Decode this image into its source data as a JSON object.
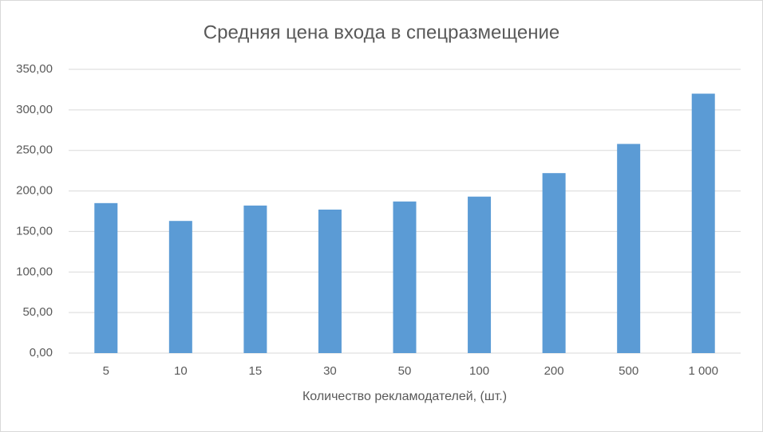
{
  "chart_data": {
    "type": "bar",
    "title": "Средняя цена входа в спецразмещение",
    "x_label": "Количество рекламодателей, (шт.)",
    "categories": [
      "5",
      "10",
      "15",
      "30",
      "50",
      "100",
      "200",
      "500",
      "1 000"
    ],
    "values": [
      185,
      163,
      182,
      177,
      187,
      193,
      222,
      258,
      320
    ],
    "color": "#5b9bd5",
    "ylim": [
      0,
      350
    ],
    "yticks": [
      {
        "value": 0,
        "label": "0,00"
      },
      {
        "value": 50,
        "label": "50,00"
      },
      {
        "value": 100,
        "label": "100,00"
      },
      {
        "value": 150,
        "label": "150,00"
      },
      {
        "value": 200,
        "label": "200,00"
      },
      {
        "value": 250,
        "label": "250,00"
      },
      {
        "value": 300,
        "label": "300,00"
      },
      {
        "value": 350,
        "label": "350,00"
      }
    ],
    "grid": true
  }
}
